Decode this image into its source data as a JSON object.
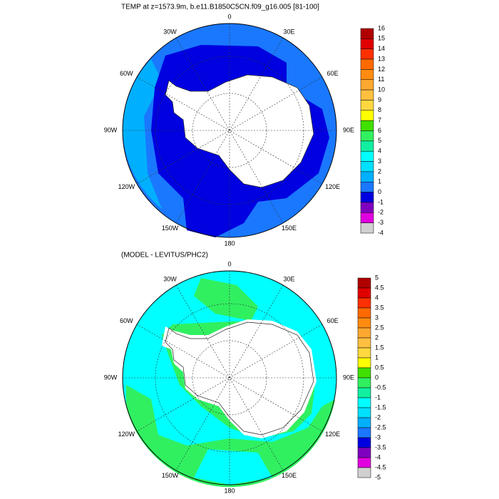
{
  "panels": [
    {
      "title": "TEMP at z=1573.9m, b.e11.B1850C5CN.f09_g16.005 [81-100]",
      "lon_labels": [
        "0",
        "30E",
        "60E",
        "90E",
        "120E",
        "150E",
        "180",
        "150W",
        "120W",
        "90W",
        "60W",
        "30W"
      ],
      "colorbar": {
        "labels": [
          "16",
          "15",
          "14",
          "13",
          "12",
          "11",
          "10",
          "9",
          "8",
          "7",
          "6",
          "5",
          "4",
          "3",
          "2",
          "1",
          "0",
          "-1",
          "-2",
          "-3",
          "-4"
        ],
        "colors": [
          "#b00000",
          "#e00000",
          "#ff3000",
          "#ff6a00",
          "#ff8c10",
          "#ffa830",
          "#ffc040",
          "#ffd840",
          "#ffff00",
          "#40e000",
          "#30f060",
          "#10f0a0",
          "#00ffff",
          "#00e0ff",
          "#00b0ff",
          "#1a78ff",
          "#0000e0",
          "#8000c0",
          "#e000e0",
          "#d0d0d0",
          "#808080"
        ]
      }
    },
    {
      "title": "(MODEL - LEVITUS/PHC2)",
      "lon_labels": [
        "0",
        "30E",
        "60E",
        "90E",
        "120E",
        "150E",
        "180",
        "150W",
        "120W",
        "90W",
        "60W",
        "30W"
      ],
      "colorbar": {
        "labels": [
          "5",
          "4.5",
          "4",
          "3.5",
          "3",
          "2.5",
          "2",
          "1.5",
          "1",
          "0.5",
          "0",
          "-0.5",
          "-1",
          "-1.5",
          "-2",
          "-2.5",
          "-3",
          "-3.5",
          "-4",
          "-4.5",
          "-5"
        ],
        "colors": [
          "#b00000",
          "#e00000",
          "#ff3000",
          "#ff6a00",
          "#ff8c10",
          "#ffa830",
          "#ffc040",
          "#ffd840",
          "#ffff00",
          "#40e000",
          "#30f060",
          "#10f0a0",
          "#00ffff",
          "#00e0ff",
          "#00b0ff",
          "#1a78ff",
          "#0000e0",
          "#8000c0",
          "#e000e0",
          "#d0d0d0",
          "#808080"
        ]
      }
    }
  ]
}
